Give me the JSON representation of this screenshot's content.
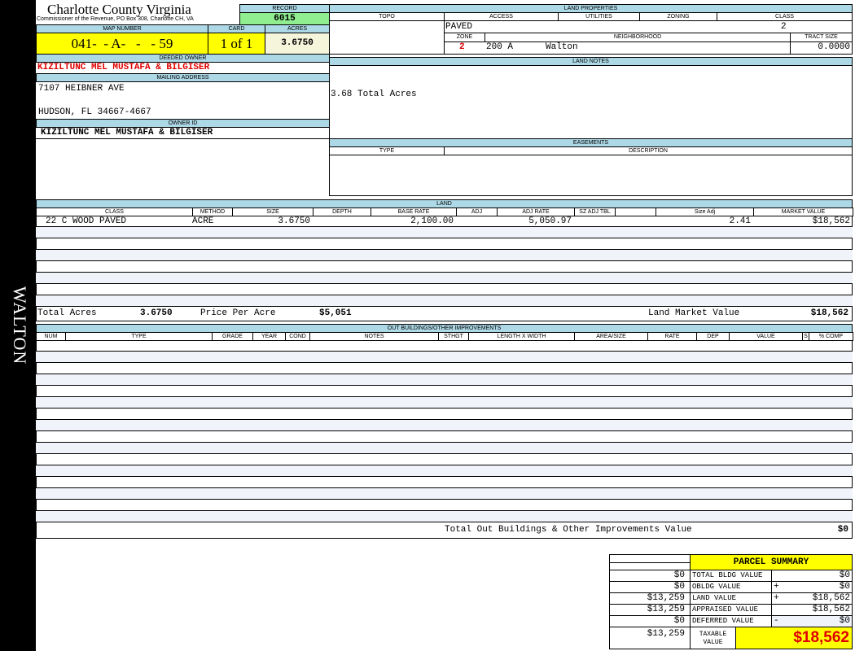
{
  "side_label": "WALTON",
  "header": {
    "county": "Charlotte County Virginia",
    "office": "Commissioner of the Revenue, PO Box 308, Charlotte CH, VA",
    "record_label": "RECORD",
    "record": "6015"
  },
  "parcel": {
    "map_number_label": "MAP NUMBER",
    "map_number": "041-  - A-   -   - 59",
    "card_label": "CARD",
    "card": "1 of 1",
    "acres_label": "ACRES",
    "acres": "3.6750"
  },
  "owner": {
    "deeded_label": "DEEDED OWNER",
    "deeded": "KIZILTUNC MEL MUSTAFA & BILGISER",
    "mailing_label": "MAILING ADDRESS",
    "address1": "7107 HEIBNER AVE",
    "address2": "HUDSON, FL 34667-4667",
    "owner_id_label": "OWNER ID",
    "owner_id": "KIZILTUNC MEL MUSTAFA & BILGISER"
  },
  "land_properties": {
    "title": "LAND PROPERTIES",
    "topo": "TOPO",
    "access": "ACCESS",
    "utilities": "UTILITIES",
    "zoning": "ZONING",
    "class": "CLASS",
    "access_value": "PAVED",
    "class_value": "2",
    "zone_label": "ZONE",
    "neighborhood_label": "NEIGHBORHOOD",
    "tract_label": "TRACT SIZE",
    "zone": "2",
    "neighborhood_code": "200 A",
    "neighborhood": "Walton",
    "tract_size": "0.0000"
  },
  "land_notes": {
    "title": "LAND NOTES",
    "text": "3.68 Total Acres"
  },
  "easements": {
    "title": "EASEMENTS",
    "type": "TYPE",
    "description": "DESCRIPTION"
  },
  "land": {
    "title": "LAND",
    "columns": [
      "CLASS",
      "METHOD",
      "SIZE",
      "DEPTH",
      "BASE RATE",
      "ADJ",
      "ADJ RATE",
      "SZ ADJ TBL",
      "",
      "Size Adj",
      "MARKET VALUE"
    ],
    "rows": [
      [
        "22 C WOOD PAVED",
        "ACRE",
        "3.6750",
        "",
        "2,100.00",
        "",
        "5,050.97",
        "",
        "",
        "2.41",
        "$18,562"
      ]
    ],
    "total_acres_label": "Total Acres",
    "total_acres": "3.6750",
    "price_per_acre_label": "Price Per Acre",
    "price_per_acre": "$5,051",
    "market_label": "Land Market Value",
    "market_value": "$18,562"
  },
  "outbuildings": {
    "title": "OUT BUILDINGS/OTHER IMPROVEMENTS",
    "columns": [
      "NUM",
      "TYPE",
      "GRADE",
      "YEAR",
      "COND",
      "NOTES",
      "STHGT",
      "LENGTH X WIDTH",
      "AREA/SIZE",
      "RATE",
      "DEP",
      "VALUE",
      "S",
      "% COMP"
    ],
    "total_label": "Total Out Buildings & Other Improvements Value",
    "total": "$0"
  },
  "summary": {
    "title": "PARCEL SUMMARY",
    "rows": [
      {
        "prior": "$0",
        "label": "TOTAL BLDG VALUE",
        "sign": "",
        "value": "$0"
      },
      {
        "prior": "$0",
        "label": "OBLDG VALUE",
        "sign": "+",
        "value": "$0"
      },
      {
        "prior": "$13,259",
        "label": "LAND VALUE",
        "sign": "+",
        "value": "$18,562"
      },
      {
        "prior": "$13,259",
        "label": "APPRAISED VALUE",
        "sign": "",
        "value": "$18,562"
      },
      {
        "prior": "$0",
        "label": "DEFERRED VALUE",
        "sign": "-",
        "value": "$0"
      }
    ],
    "taxable_prior": "$13,259",
    "taxable_label": "TAXABLE VALUE",
    "taxable": "$18,562"
  }
}
